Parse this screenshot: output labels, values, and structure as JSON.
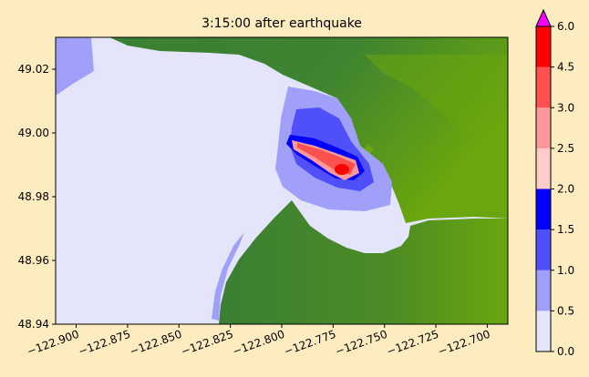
{
  "chart_data": {
    "type": "heatmap",
    "title": "3:15:00 after earthquake",
    "xlabel": "",
    "ylabel": "",
    "xlim": [
      -122.91,
      -122.69
    ],
    "ylim": [
      48.94,
      49.03
    ],
    "x_ticks": [
      -122.9,
      -122.875,
      -122.85,
      -122.825,
      -122.8,
      -122.775,
      -122.75,
      -122.725,
      -122.7
    ],
    "x_tick_labels": [
      "−122.900",
      "−122.875",
      "−122.850",
      "−122.825",
      "−122.800",
      "−122.775",
      "−122.750",
      "−122.725",
      "−122.700"
    ],
    "y_ticks": [
      48.94,
      48.96,
      48.98,
      49.0,
      49.02
    ],
    "y_tick_labels": [
      "48.94",
      "48.96",
      "48.98",
      "49.00",
      "49.02"
    ],
    "colorbar": {
      "levels": [
        0.0,
        0.5,
        1.0,
        1.5,
        2.0,
        2.5,
        3.0,
        4.5,
        6.0
      ],
      "tick_labels": [
        "0.0",
        "0.5",
        "1.0",
        "1.5",
        "2.0",
        "2.5",
        "3.0",
        "4.5",
        "6.0"
      ],
      "colors": [
        "#e4e4fb",
        "#a0a0fb",
        "#5050fb",
        "#0000ff",
        "#ffcccc",
        "#ff9999",
        "#ff5050",
        "#ff0000"
      ],
      "extend_max_color": "#ff00ff"
    },
    "background_colors": {
      "land_dark": "#397d36",
      "land_light": "#6aa60e"
    }
  }
}
